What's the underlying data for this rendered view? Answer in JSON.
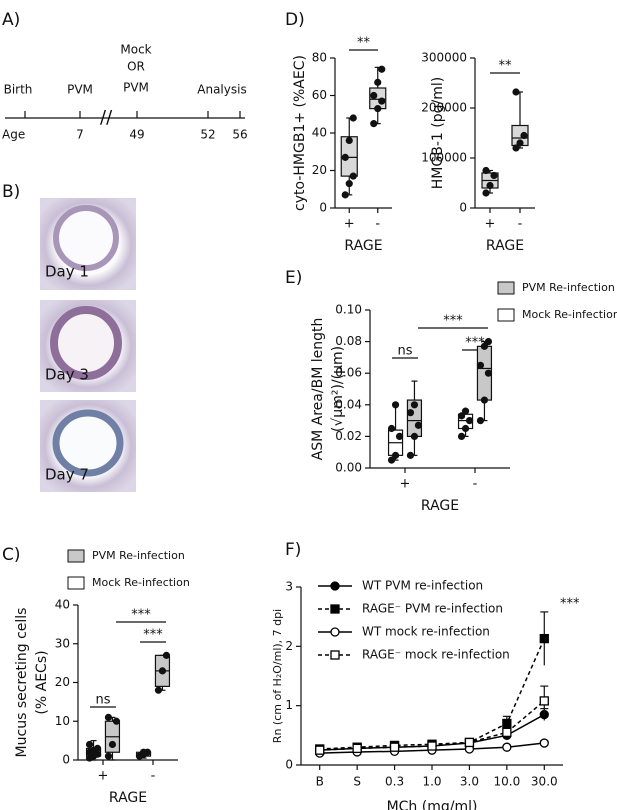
{
  "panel_labels": [
    "A)",
    "B)",
    "C)",
    "D)",
    "E)",
    "F)"
  ],
  "timeline": {
    "events": [
      "Birth",
      "PVM",
      "Mock",
      "OR",
      "PVM",
      "Analysis"
    ],
    "age_label": "Age",
    "ages": [
      "7",
      "49",
      "52",
      "56"
    ]
  },
  "micrographs": {
    "labels": [
      "Day 1",
      "Day 3",
      "Day 7"
    ]
  },
  "chart_data": [
    {
      "type": "box",
      "ylabel": [
        "cyto-HMGB1+ (%AEC)"
      ],
      "xlabel": "RAGE",
      "categories": [
        "+",
        "-"
      ],
      "ylim": [
        0,
        80
      ],
      "yticks": [
        0,
        20,
        40,
        60,
        80
      ],
      "annotations": [
        "**"
      ],
      "series": [
        {
          "color": "#d9d9d9",
          "boxes": [
            {
              "min": 7,
              "q1": 17,
              "median": 27,
              "q3": 38,
              "max": 48,
              "points": [
                7,
                13,
                17,
                27,
                36,
                48
              ]
            },
            {
              "min": 45,
              "q1": 53,
              "median": 58,
              "q3": 64,
              "max": 75,
              "points": [
                45,
                53,
                57,
                60,
                67,
                74
              ]
            }
          ]
        }
      ]
    },
    {
      "type": "box",
      "ylabel": [
        "HMGB-1  (pg/ml)"
      ],
      "xlabel": "RAGE",
      "categories": [
        "+",
        "-"
      ],
      "ylim": [
        0,
        300000
      ],
      "yticks": [
        0,
        100000,
        200000,
        300000
      ],
      "annotations": [
        "**"
      ],
      "series": [
        {
          "color": "#d9d9d9",
          "boxes": [
            {
              "min": 30000,
              "q1": 40000,
              "median": 55000,
              "q3": 70000,
              "max": 75000,
              "points": [
                30000,
                45000,
                65000,
                75000
              ]
            },
            {
              "min": 120000,
              "q1": 125000,
              "median": 140000,
              "q3": 165000,
              "max": 232000,
              "points": [
                120000,
                130000,
                145000,
                232000
              ]
            }
          ]
        }
      ]
    },
    {
      "type": "box",
      "ylabel": [
        "ASM  Area/BM length",
        "(√µm²)/(µm)"
      ],
      "xlabel": "RAGE",
      "categories": [
        "+",
        "-"
      ],
      "ylim": [
        0,
        0.1
      ],
      "yticks": [
        {
          "value": 0,
          "label": "0.00"
        },
        {
          "value": 0.02,
          "label": "0.02"
        },
        {
          "value": 0.04,
          "label": "0.04"
        },
        {
          "value": 0.06,
          "label": "0.06"
        },
        {
          "value": 0.08,
          "label": "0.08"
        },
        {
          "value": 0.1,
          "label": "0.10"
        }
      ],
      "annotations": [
        "***",
        "***",
        "ns"
      ],
      "series": [
        {
          "name": "PVM Re-infection",
          "color": "#c8c8c8",
          "boxes": [
            {
              "min": 0.008,
              "q1": 0.02,
              "median": 0.03,
              "q3": 0.043,
              "max": 0.055,
              "points": [
                0.008,
                0.02,
                0.027,
                0.035,
                0.04
              ]
            },
            {
              "min": 0.03,
              "q1": 0.043,
              "median": 0.063,
              "q3": 0.077,
              "max": 0.08,
              "points": [
                0.03,
                0.043,
                0.06,
                0.065,
                0.077,
                0.08
              ]
            }
          ]
        },
        {
          "name": "Mock Re-infection",
          "color": "#ffffff",
          "boxes": [
            {
              "min": 0.005,
              "q1": 0.008,
              "median": 0.016,
              "q3": 0.024,
              "max": 0.04,
              "points": [
                0.005,
                0.008,
                0.02,
                0.025,
                0.04
              ]
            },
            {
              "min": 0.02,
              "q1": 0.025,
              "median": 0.03,
              "q3": 0.034,
              "max": 0.037,
              "points": [
                0.02,
                0.025,
                0.03,
                0.033,
                0.036
              ]
            }
          ]
        }
      ]
    },
    {
      "type": "box",
      "ylabel": [
        "Mucus secreting cells",
        "(% AECs)"
      ],
      "xlabel": "RAGE",
      "categories": [
        "+",
        "-"
      ],
      "ylim": [
        0,
        40
      ],
      "yticks": [
        0,
        10,
        20,
        30,
        40
      ],
      "annotations": [
        "***",
        "***",
        "ns"
      ],
      "series": [
        {
          "name": "PVM Re-infection",
          "color": "#c8c8c8",
          "boxes": [
            {
              "min": 0,
              "q1": 2,
              "median": 6,
              "q3": 10,
              "max": 11,
              "points": [
                1,
                4,
                10,
                11
              ]
            },
            {
              "min": 18,
              "q1": 19,
              "median": 23,
              "q3": 27,
              "max": 27,
              "points": [
                18,
                23,
                27
              ]
            }
          ]
        },
        {
          "name": "Mock Re-infection",
          "color": "#ffffff",
          "boxes": [
            {
              "min": 0,
              "q1": 1,
              "median": 2,
              "q3": 3,
              "max": 5,
              "points": [
                0.5,
                1,
                1.5,
                2,
                2.5,
                3,
                4
              ]
            },
            {
              "min": 0.5,
              "q1": 1,
              "median": 1.5,
              "q3": 2,
              "max": 2.5,
              "points": [
                1,
                1.5,
                2,
                1,
                2
              ]
            }
          ]
        }
      ]
    },
    {
      "type": "line",
      "ylabel": [
        "Rn (cm of H₂O/ml), 7 dpi"
      ],
      "xlabel": "MCh (mg/ml)",
      "categories": [
        "B",
        "S",
        "0.3",
        "1.0",
        "3.0",
        "10.0",
        "30.0"
      ],
      "ylim": [
        0,
        3
      ],
      "yticks": [
        0,
        1,
        2,
        3
      ],
      "annotations": [
        "***"
      ],
      "series": [
        {
          "name": "WT PVM re-infection",
          "color": "#000000",
          "marker": "circle",
          "filled": true,
          "dashed": false,
          "values": [
            0.25,
            0.28,
            0.3,
            0.32,
            0.37,
            0.5,
            0.85
          ],
          "errors": [
            0.02,
            0.02,
            0.02,
            0.03,
            0.03,
            0.05,
            0.1
          ]
        },
        {
          "name": "RAGE⁻  PVM re-infection",
          "color": "#000000",
          "marker": "square",
          "filled": true,
          "dashed": true,
          "values": [
            0.27,
            0.3,
            0.33,
            0.35,
            0.38,
            0.7,
            2.13
          ],
          "errors": [
            0.02,
            0.02,
            0.02,
            0.03,
            0.04,
            0.12,
            0.45
          ]
        },
        {
          "name": "WT mock re-infection",
          "color": "#000000",
          "marker": "circle",
          "filled": false,
          "dashed": false,
          "values": [
            0.2,
            0.22,
            0.23,
            0.25,
            0.27,
            0.3,
            0.37
          ],
          "errors": [
            0.02,
            0.02,
            0.02,
            0.02,
            0.02,
            0.03,
            0.04
          ]
        },
        {
          "name": "RAGE⁻  mock re-infection",
          "color": "#000000",
          "marker": "square",
          "filled": false,
          "dashed": true,
          "values": [
            0.25,
            0.28,
            0.3,
            0.32,
            0.38,
            0.55,
            1.08
          ],
          "errors": [
            0.02,
            0.02,
            0.02,
            0.02,
            0.03,
            0.06,
            0.25
          ]
        }
      ]
    }
  ]
}
